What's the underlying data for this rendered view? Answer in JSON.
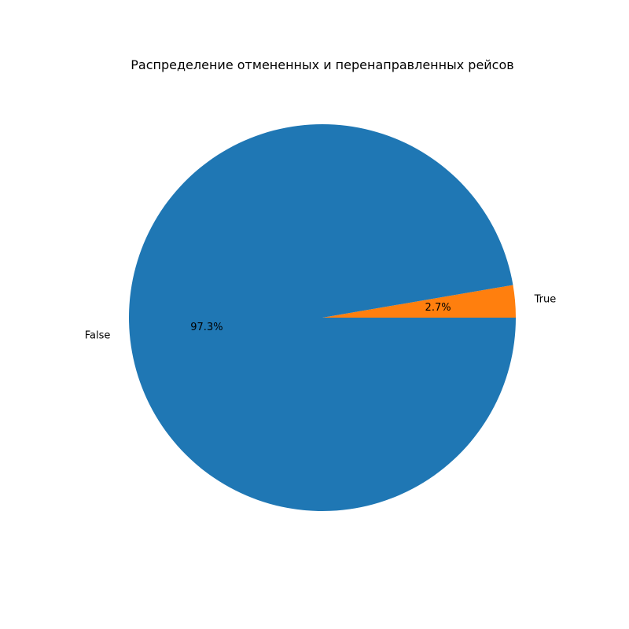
{
  "chart_data": {
    "type": "pie",
    "title": "Распределение отмененных и перенаправленных рейсов",
    "start_angle_deg": 0,
    "direction": "counterclockwise",
    "slices": [
      {
        "label": "True",
        "value": 2.7,
        "pct_label": "2.7%",
        "color": "#ff7f0e"
      },
      {
        "label": "False",
        "value": 97.3,
        "pct_label": "97.3%",
        "color": "#1f77b4"
      }
    ]
  }
}
